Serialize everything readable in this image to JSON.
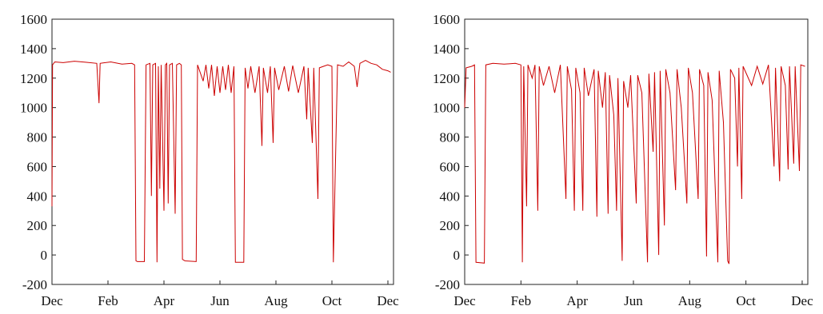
{
  "chart_data": [
    {
      "type": "line",
      "title": "",
      "xlabel": "",
      "ylabel": "",
      "ylim": [
        -200,
        1600
      ],
      "yticks": [
        -200,
        0,
        200,
        400,
        600,
        800,
        1000,
        1200,
        1400,
        1600
      ],
      "xlim": [
        0,
        12.2
      ],
      "xticks": [
        {
          "label": "Dec",
          "at": 0
        },
        {
          "label": "Feb",
          "at": 2
        },
        {
          "label": "Apr",
          "at": 4
        },
        {
          "label": "Jun",
          "at": 6
        },
        {
          "label": "Aug",
          "at": 8
        },
        {
          "label": "Oct",
          "at": 10
        },
        {
          "label": "Dec",
          "at": 12
        }
      ],
      "grid": false,
      "series": [
        {
          "color": "#cc0000",
          "points": [
            [
              0.0,
              330
            ],
            [
              0.02,
              1290
            ],
            [
              0.1,
              1310
            ],
            [
              0.4,
              1305
            ],
            [
              0.8,
              1315
            ],
            [
              1.2,
              1308
            ],
            [
              1.6,
              1300
            ],
            [
              1.68,
              1030
            ],
            [
              1.72,
              1300
            ],
            [
              2.1,
              1310
            ],
            [
              2.5,
              1295
            ],
            [
              2.85,
              1300
            ],
            [
              2.95,
              1290
            ],
            [
              3.0,
              -40
            ],
            [
              3.05,
              -45
            ],
            [
              3.3,
              -45
            ],
            [
              3.36,
              1290
            ],
            [
              3.5,
              1300
            ],
            [
              3.55,
              400
            ],
            [
              3.6,
              1290
            ],
            [
              3.7,
              1300
            ],
            [
              3.75,
              -50
            ],
            [
              3.8,
              1280
            ],
            [
              3.85,
              450
            ],
            [
              3.9,
              1290
            ],
            [
              4.0,
              300
            ],
            [
              4.05,
              1290
            ],
            [
              4.1,
              1300
            ],
            [
              4.15,
              350
            ],
            [
              4.2,
              1290
            ],
            [
              4.3,
              1300
            ],
            [
              4.4,
              280
            ],
            [
              4.45,
              1290
            ],
            [
              4.55,
              1300
            ],
            [
              4.62,
              1290
            ],
            [
              4.66,
              -30
            ],
            [
              4.75,
              -40
            ],
            [
              5.15,
              -45
            ],
            [
              5.2,
              1290
            ],
            [
              5.4,
              1180
            ],
            [
              5.5,
              1290
            ],
            [
              5.6,
              1130
            ],
            [
              5.7,
              1290
            ],
            [
              5.8,
              1080
            ],
            [
              5.9,
              1280
            ],
            [
              6.0,
              1100
            ],
            [
              6.1,
              1280
            ],
            [
              6.2,
              1120
            ],
            [
              6.3,
              1290
            ],
            [
              6.4,
              1100
            ],
            [
              6.5,
              1280
            ],
            [
              6.55,
              -50
            ],
            [
              6.85,
              -50
            ],
            [
              6.9,
              1270
            ],
            [
              7.0,
              1130
            ],
            [
              7.1,
              1280
            ],
            [
              7.25,
              1100
            ],
            [
              7.4,
              1280
            ],
            [
              7.5,
              740
            ],
            [
              7.55,
              1270
            ],
            [
              7.7,
              1100
            ],
            [
              7.8,
              1280
            ],
            [
              7.9,
              760
            ],
            [
              7.95,
              1270
            ],
            [
              8.1,
              1120
            ],
            [
              8.3,
              1280
            ],
            [
              8.45,
              1110
            ],
            [
              8.6,
              1285
            ],
            [
              8.8,
              1100
            ],
            [
              9.0,
              1280
            ],
            [
              9.1,
              920
            ],
            [
              9.15,
              1270
            ],
            [
              9.3,
              760
            ],
            [
              9.35,
              1270
            ],
            [
              9.5,
              380
            ],
            [
              9.55,
              1270
            ],
            [
              9.7,
              1280
            ],
            [
              9.85,
              1290
            ],
            [
              10.0,
              1280
            ],
            [
              10.05,
              -50
            ],
            [
              10.2,
              1290
            ],
            [
              10.4,
              1280
            ],
            [
              10.6,
              1310
            ],
            [
              10.8,
              1280
            ],
            [
              10.9,
              1140
            ],
            [
              11.0,
              1300
            ],
            [
              11.2,
              1320
            ],
            [
              11.4,
              1300
            ],
            [
              11.6,
              1290
            ],
            [
              11.8,
              1260
            ],
            [
              12.0,
              1250
            ],
            [
              12.1,
              1240
            ]
          ]
        }
      ]
    },
    {
      "type": "line",
      "title": "",
      "xlabel": "",
      "ylabel": "",
      "ylim": [
        -200,
        1600
      ],
      "yticks": [
        -200,
        0,
        200,
        400,
        600,
        800,
        1000,
        1200,
        1400,
        1600
      ],
      "xlim": [
        0,
        12.2
      ],
      "xticks": [
        {
          "label": "Dec",
          "at": 0
        },
        {
          "label": "Feb",
          "at": 2
        },
        {
          "label": "Apr",
          "at": 4
        },
        {
          "label": "Jun",
          "at": 6
        },
        {
          "label": "Aug",
          "at": 8
        },
        {
          "label": "Oct",
          "at": 10
        },
        {
          "label": "Dec",
          "at": 12
        }
      ],
      "grid": false,
      "series": [
        {
          "color": "#cc0000",
          "points": [
            [
              0.0,
              1000
            ],
            [
              0.05,
              1270
            ],
            [
              0.25,
              1280
            ],
            [
              0.35,
              1290
            ],
            [
              0.4,
              -50
            ],
            [
              0.7,
              -55
            ],
            [
              0.75,
              1290
            ],
            [
              1.0,
              1300
            ],
            [
              1.4,
              1295
            ],
            [
              1.8,
              1300
            ],
            [
              2.0,
              1290
            ],
            [
              2.05,
              -50
            ],
            [
              2.1,
              1280
            ],
            [
              2.2,
              330
            ],
            [
              2.25,
              1290
            ],
            [
              2.4,
              1200
            ],
            [
              2.5,
              1290
            ],
            [
              2.6,
              300
            ],
            [
              2.65,
              1280
            ],
            [
              2.8,
              1150
            ],
            [
              3.0,
              1280
            ],
            [
              3.2,
              1100
            ],
            [
              3.4,
              1290
            ],
            [
              3.6,
              380
            ],
            [
              3.65,
              1280
            ],
            [
              3.8,
              1120
            ],
            [
              3.9,
              300
            ],
            [
              3.95,
              1270
            ],
            [
              4.1,
              1100
            ],
            [
              4.2,
              300
            ],
            [
              4.25,
              1270
            ],
            [
              4.4,
              1080
            ],
            [
              4.6,
              1260
            ],
            [
              4.7,
              260
            ],
            [
              4.75,
              1250
            ],
            [
              4.9,
              1000
            ],
            [
              5.0,
              1240
            ],
            [
              5.1,
              280
            ],
            [
              5.15,
              1220
            ],
            [
              5.3,
              950
            ],
            [
              5.4,
              300
            ],
            [
              5.45,
              1200
            ],
            [
              5.6,
              -40
            ],
            [
              5.65,
              1180
            ],
            [
              5.8,
              1000
            ],
            [
              5.9,
              1220
            ],
            [
              6.1,
              350
            ],
            [
              6.15,
              1220
            ],
            [
              6.3,
              1100
            ],
            [
              6.5,
              -50
            ],
            [
              6.55,
              1230
            ],
            [
              6.7,
              700
            ],
            [
              6.75,
              1240
            ],
            [
              6.9,
              0
            ],
            [
              6.95,
              1250
            ],
            [
              7.1,
              200
            ],
            [
              7.15,
              1260
            ],
            [
              7.3,
              1100
            ],
            [
              7.5,
              440
            ],
            [
              7.55,
              1260
            ],
            [
              7.7,
              1000
            ],
            [
              7.9,
              350
            ],
            [
              7.95,
              1270
            ],
            [
              8.1,
              1100
            ],
            [
              8.3,
              380
            ],
            [
              8.35,
              1260
            ],
            [
              8.5,
              1150
            ],
            [
              8.6,
              -10
            ],
            [
              8.65,
              1240
            ],
            [
              8.8,
              1050
            ],
            [
              9.0,
              -50
            ],
            [
              9.05,
              1250
            ],
            [
              9.2,
              900
            ],
            [
              9.35,
              -40
            ],
            [
              9.4,
              -60
            ],
            [
              9.45,
              1260
            ],
            [
              9.6,
              1200
            ],
            [
              9.7,
              600
            ],
            [
              9.75,
              1270
            ],
            [
              9.85,
              380
            ],
            [
              9.9,
              1280
            ],
            [
              10.2,
              1150
            ],
            [
              10.4,
              1280
            ],
            [
              10.6,
              1160
            ],
            [
              10.8,
              1290
            ],
            [
              11.0,
              600
            ],
            [
              11.05,
              1270
            ],
            [
              11.2,
              500
            ],
            [
              11.25,
              1280
            ],
            [
              11.4,
              1150
            ],
            [
              11.5,
              580
            ],
            [
              11.55,
              1280
            ],
            [
              11.7,
              620
            ],
            [
              11.75,
              1280
            ],
            [
              11.9,
              570
            ],
            [
              11.95,
              1290
            ],
            [
              12.1,
              1280
            ]
          ]
        }
      ]
    }
  ]
}
